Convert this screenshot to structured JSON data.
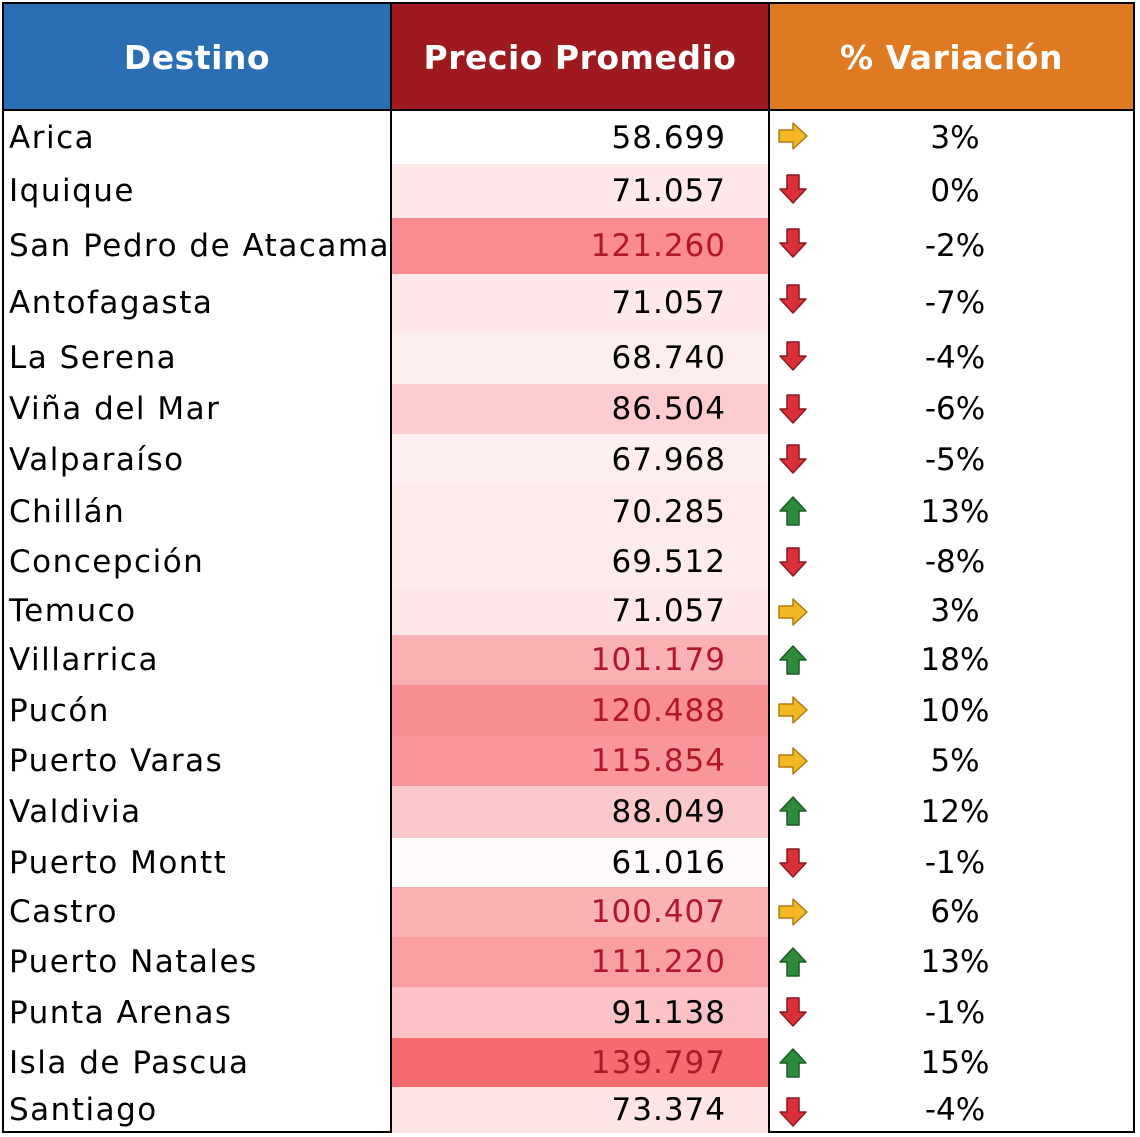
{
  "headers": {
    "destino": "Destino",
    "precio": "Precio Promedio",
    "variacion": "% Variación"
  },
  "colors": {
    "header_destino": "#2a6fb4",
    "header_precio": "#9e1a1f",
    "header_variacion": "#e07a22",
    "arrow_up": "#2e8b3a",
    "arrow_down": "#d9303a",
    "arrow_right": "#f2b824"
  },
  "rows": [
    {
      "destino": "Arica",
      "precio": "58.699",
      "precio_value": 58699,
      "variacion": "3%",
      "trend": "right",
      "icon": "arrow-right-icon"
    },
    {
      "destino": "Iquique",
      "precio": "71.057",
      "precio_value": 71057,
      "variacion": "0%",
      "trend": "down",
      "icon": "arrow-down-icon"
    },
    {
      "destino": "San Pedro de Atacama",
      "precio": "121.260",
      "precio_value": 121260,
      "variacion": "-2%",
      "trend": "down",
      "icon": "arrow-down-icon"
    },
    {
      "destino": "Antofagasta",
      "precio": "71.057",
      "precio_value": 71057,
      "variacion": "-7%",
      "trend": "down",
      "icon": "arrow-down-icon"
    },
    {
      "destino": "La Serena",
      "precio": "68.740",
      "precio_value": 68740,
      "variacion": "-4%",
      "trend": "down",
      "icon": "arrow-down-icon"
    },
    {
      "destino": "Viña del Mar",
      "precio": "86.504",
      "precio_value": 86504,
      "variacion": "-6%",
      "trend": "down",
      "icon": "arrow-down-icon"
    },
    {
      "destino": "Valparaíso",
      "precio": "67.968",
      "precio_value": 67968,
      "variacion": "-5%",
      "trend": "down",
      "icon": "arrow-down-icon"
    },
    {
      "destino": "Chillán",
      "precio": "70.285",
      "precio_value": 70285,
      "variacion": "13%",
      "trend": "up",
      "icon": "arrow-up-icon"
    },
    {
      "destino": "Concepción",
      "precio": "69.512",
      "precio_value": 69512,
      "variacion": "-8%",
      "trend": "down",
      "icon": "arrow-down-icon"
    },
    {
      "destino": "Temuco",
      "precio": "71.057",
      "precio_value": 71057,
      "variacion": "3%",
      "trend": "right",
      "icon": "arrow-right-icon"
    },
    {
      "destino": "Villarrica",
      "precio": "101.179",
      "precio_value": 101179,
      "variacion": "18%",
      "trend": "up",
      "icon": "arrow-up-icon"
    },
    {
      "destino": "Pucón",
      "precio": "120.488",
      "precio_value": 120488,
      "variacion": "10%",
      "trend": "right",
      "icon": "arrow-right-icon"
    },
    {
      "destino": "Puerto Varas",
      "precio": "115.854",
      "precio_value": 115854,
      "variacion": "5%",
      "trend": "right",
      "icon": "arrow-right-icon"
    },
    {
      "destino": "Valdivia",
      "precio": "88.049",
      "precio_value": 88049,
      "variacion": "12%",
      "trend": "up",
      "icon": "arrow-up-icon"
    },
    {
      "destino": "Puerto Montt",
      "precio": "61.016",
      "precio_value": 61016,
      "variacion": "-1%",
      "trend": "down",
      "icon": "arrow-down-icon"
    },
    {
      "destino": "Castro",
      "precio": "100.407",
      "precio_value": 100407,
      "variacion": "6%",
      "trend": "right",
      "icon": "arrow-right-icon"
    },
    {
      "destino": "Puerto Natales",
      "precio": "111.220",
      "precio_value": 111220,
      "variacion": "13%",
      "trend": "up",
      "icon": "arrow-up-icon"
    },
    {
      "destino": "Punta Arenas",
      "precio": "91.138",
      "precio_value": 91138,
      "variacion": "-1%",
      "trend": "down",
      "icon": "arrow-down-icon"
    },
    {
      "destino": "Isla de Pascua",
      "precio": "139.797",
      "precio_value": 139797,
      "variacion": "15%",
      "trend": "up",
      "icon": "arrow-up-icon"
    },
    {
      "destino": "Santiago",
      "precio": "73.374",
      "precio_value": 73374,
      "variacion": "-4%",
      "trend": "down",
      "icon": "arrow-down-icon"
    }
  ]
}
